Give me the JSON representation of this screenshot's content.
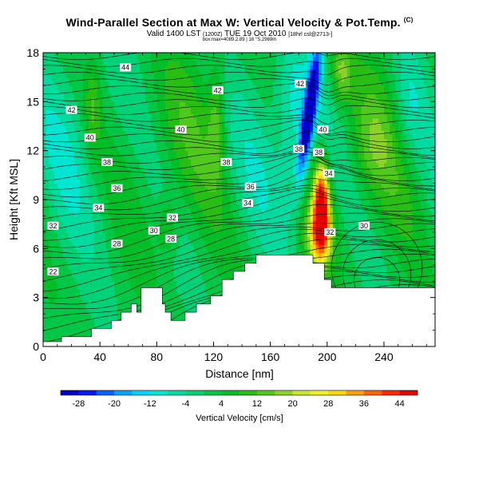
{
  "header": {
    "title": "Wind-Parallel Section at Max W: Vertical Velocity & Pot.Temp.",
    "title_mark": "(C)",
    "subtitle": "Valid 1400 LST",
    "subtitle_small_1": "(1200Z)",
    "subtitle_main": "TUE 19 Oct 2010",
    "subtitle_small_2": "[18hrl csl@2713-]",
    "subsub": "box:max=4089.2.89 | 16 °S,2969m"
  },
  "chart_data": {
    "type": "heatmap",
    "title": "Wind-Parallel Section at Max W: Vertical Velocity & Pot.Temp.",
    "xlabel": "Distance [nm]",
    "ylabel": "Height [Kft MSL]",
    "xlim": [
      0,
      276
    ],
    "ylim": [
      0,
      18
    ],
    "x_ticks": [
      0,
      40,
      80,
      120,
      160,
      200,
      240
    ],
    "y_ticks": [
      0,
      3,
      6,
      9,
      12,
      15,
      18
    ],
    "terrain_profile": {
      "x": [
        0,
        13,
        13,
        34,
        34,
        48,
        48,
        55,
        55,
        62,
        62,
        66,
        66,
        69,
        69,
        84,
        84,
        86,
        86,
        90,
        90,
        96,
        96,
        100,
        100,
        108,
        108,
        118,
        118,
        126,
        126,
        134,
        134,
        142,
        142,
        150,
        150,
        158,
        158,
        166,
        166,
        190,
        190,
        198,
        198,
        203,
        203,
        213,
        213,
        246,
        246,
        276
      ],
      "height": [
        0.3,
        0.3,
        0.6,
        0.6,
        1.1,
        1.1,
        1.6,
        1.6,
        2.1,
        2.1,
        2.6,
        2.6,
        2.1,
        2.1,
        3.6,
        3.6,
        2.6,
        2.6,
        2.1,
        2.1,
        1.6,
        1.6,
        1.6,
        1.6,
        2.1,
        2.1,
        2.6,
        2.6,
        3.1,
        3.1,
        4.1,
        4.1,
        4.6,
        4.6,
        5.1,
        5.1,
        5.6,
        5.6,
        5.6,
        5.6,
        5.6,
        5.6,
        5.1,
        5.1,
        4.1,
        4.1,
        3.6,
        3.6,
        3.6,
        3.6,
        3.6,
        3.6
      ]
    },
    "theta_labels": [
      {
        "value": "44",
        "x": 58,
        "y": 17.1
      },
      {
        "value": "42",
        "x": 20,
        "y": 14.5
      },
      {
        "value": "42",
        "x": 123,
        "y": 15.7
      },
      {
        "value": "42",
        "x": 181,
        "y": 16.1
      },
      {
        "value": "40",
        "x": 33,
        "y": 12.8
      },
      {
        "value": "40",
        "x": 97,
        "y": 13.3
      },
      {
        "value": "40",
        "x": 197,
        "y": 13.3
      },
      {
        "value": "38",
        "x": 45,
        "y": 11.3
      },
      {
        "value": "38",
        "x": 129,
        "y": 11.3
      },
      {
        "value": "38",
        "x": 180,
        "y": 12.1
      },
      {
        "value": "38",
        "x": 194,
        "y": 11.9
      },
      {
        "value": "36",
        "x": 52,
        "y": 9.7
      },
      {
        "value": "36",
        "x": 146,
        "y": 9.8
      },
      {
        "value": "34",
        "x": 39,
        "y": 8.5
      },
      {
        "value": "34",
        "x": 144,
        "y": 8.8
      },
      {
        "value": "34",
        "x": 201,
        "y": 10.6
      },
      {
        "value": "32",
        "x": 7,
        "y": 7.4
      },
      {
        "value": "32",
        "x": 91,
        "y": 7.9
      },
      {
        "value": "32",
        "x": 202,
        "y": 7.0
      },
      {
        "value": "30",
        "x": 78,
        "y": 7.1
      },
      {
        "value": "30",
        "x": 226,
        "y": 7.4
      },
      {
        "value": "28",
        "x": 52,
        "y": 6.3
      },
      {
        "value": "28",
        "x": 90,
        "y": 6.6
      },
      {
        "value": "22",
        "x": 7,
        "y": 4.6
      }
    ],
    "colorbar": {
      "label": "Vertical Velocity [cm/s]",
      "ticks": [
        -28,
        -20,
        -12,
        -4,
        4,
        12,
        20,
        28,
        36,
        44
      ],
      "range": [
        -32,
        48
      ],
      "colors": [
        "#0000c8",
        "#0019ff",
        "#0064ff",
        "#00a5ff",
        "#00d2ff",
        "#00e6d2",
        "#00dca0",
        "#00d278",
        "#00c846",
        "#00be28",
        "#28be14",
        "#50c81e",
        "#8cd228",
        "#c8e632",
        "#f0f028",
        "#ffd700",
        "#ffa000",
        "#ff6400",
        "#ff2800",
        "#e60000"
      ]
    }
  }
}
